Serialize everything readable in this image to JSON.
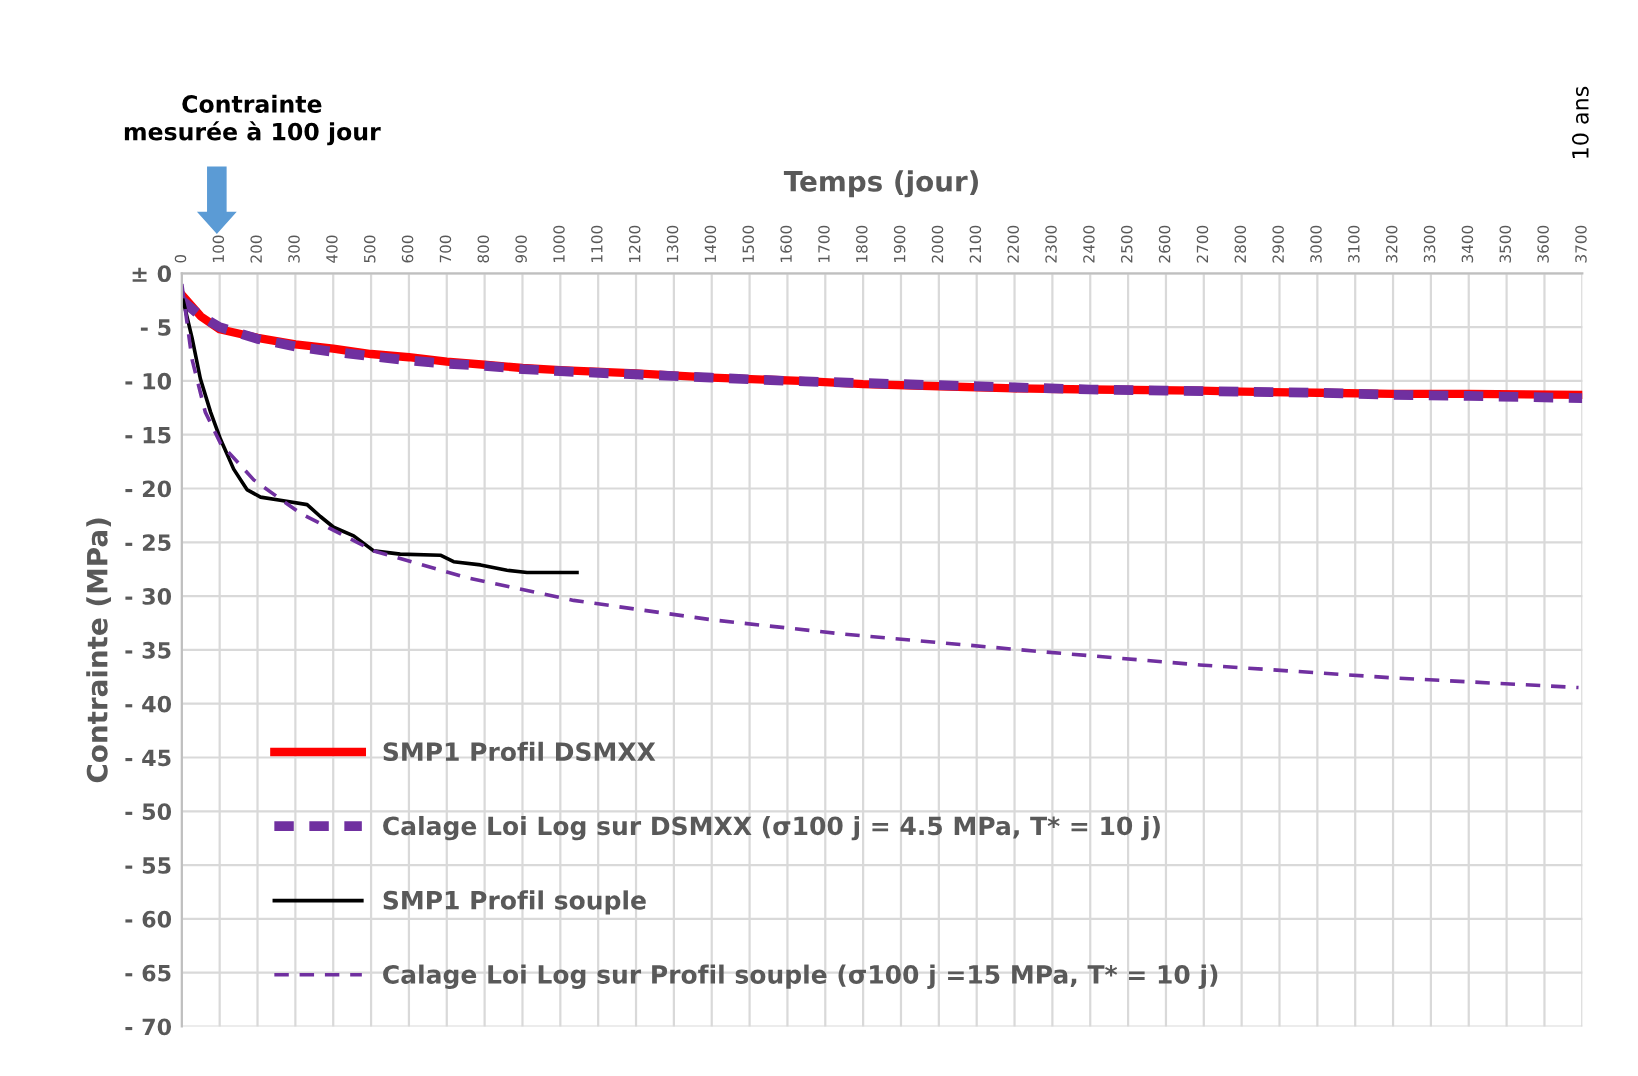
{
  "chart_data": {
    "type": "line",
    "xlabel": "Temps (jour)",
    "ylabel": "Contrainte (MPa)",
    "xlim": [
      0,
      3700
    ],
    "xticks": [
      0,
      100,
      200,
      300,
      400,
      500,
      600,
      700,
      800,
      900,
      1000,
      1100,
      1200,
      1300,
      1400,
      1500,
      1600,
      1700,
      1800,
      1900,
      2000,
      2100,
      2200,
      2300,
      2400,
      2500,
      2600,
      2700,
      2800,
      2900,
      3000,
      3100,
      3200,
      3300,
      3400,
      3500,
      3600,
      3700
    ],
    "ylim": [
      -70,
      0
    ],
    "yticks": [
      {
        "value": 0,
        "label": "± 0"
      },
      {
        "value": -5,
        "label": "- 5"
      },
      {
        "value": -10,
        "label": "- 10"
      },
      {
        "value": -15,
        "label": "- 15"
      },
      {
        "value": -20,
        "label": "- 20"
      },
      {
        "value": -25,
        "label": "- 25"
      },
      {
        "value": -30,
        "label": "- 30"
      },
      {
        "value": -35,
        "label": "- 35"
      },
      {
        "value": -40,
        "label": "- 40"
      },
      {
        "value": -45,
        "label": "- 45"
      },
      {
        "value": -50,
        "label": "- 50"
      },
      {
        "value": -55,
        "label": "- 55"
      },
      {
        "value": -60,
        "label": "- 60"
      },
      {
        "value": -65,
        "label": "- 65"
      },
      {
        "value": -70,
        "label": "- 70"
      }
    ],
    "grid": true,
    "legend": "bottom left",
    "marker": "none",
    "annotations": [
      "Contrainte\nmesurée à 100 jour",
      "10 ans"
    ],
    "series": [
      {
        "name": "SMP1 Profil DSMXX",
        "color": "#ff0000",
        "line_style": "solid",
        "x": [
          0,
          50,
          100,
          200,
          300,
          400,
          500,
          600,
          700,
          800,
          900,
          1000,
          1200,
          1400,
          1634,
          1800,
          2000,
          2200,
          2400,
          2690,
          2800,
          3000,
          3200,
          3400,
          3695
        ],
        "values": [
          -2,
          -4,
          -5.2,
          -6.0,
          -6.6,
          -7.0,
          -7.5,
          -7.8,
          -8.2,
          -8.5,
          -8.8,
          -9.0,
          -9.3,
          -9.7,
          -10.0,
          -10.3,
          -10.5,
          -10.7,
          -10.8,
          -10.9,
          -11.0,
          -11.1,
          -11.2,
          -11.2,
          -11.3
        ]
      },
      {
        "name": "Calage Loi Log sur DSMXX (σ100 j = 4.5 MPa, T* = 10 j)",
        "color": "#7030a0",
        "line_style": "dashed",
        "x": [
          0,
          50,
          100,
          200,
          300,
          400,
          500,
          600,
          700,
          800,
          900,
          1000,
          1200,
          1400,
          1600,
          1800,
          2000,
          2200,
          2400,
          2600,
          2800,
          3000,
          3200,
          3400,
          3700
        ],
        "values": [
          -2.5,
          -4,
          -5.0,
          -6.1,
          -6.8,
          -7.3,
          -7.7,
          -8.1,
          -8.4,
          -8.6,
          -8.9,
          -9.1,
          -9.4,
          -9.7,
          -10.0,
          -10.2,
          -10.4,
          -10.6,
          -10.8,
          -10.9,
          -11.0,
          -11.1,
          -11.3,
          -11.4,
          -11.6
        ]
      },
      {
        "name": "SMP1 Profil souple",
        "color": "#000000",
        "line_style": "solid",
        "x": [
          2,
          27,
          49,
          76,
          102,
          137,
          172,
          208,
          260,
          331,
          366,
          401,
          454,
          507,
          577,
          683,
          718,
          789,
          859,
          912,
          965,
          1044
        ],
        "values": [
          -2.3,
          -6,
          -9.8,
          -12.9,
          -15.4,
          -18.2,
          -20.1,
          -20.8,
          -21.1,
          -21.5,
          -22.6,
          -23.6,
          -24.4,
          -25.8,
          -26.1,
          -26.2,
          -26.8,
          -27.1,
          -27.6,
          -27.8,
          -27.8,
          -27.8
        ]
      },
      {
        "name": "Calage Loi Log sur Profil souple (σ100 j =15 MPa, T* = 10 j)",
        "color": "#7030a0",
        "line_style": "dashed",
        "x": [
          0,
          27,
          62,
          102,
          190,
          313,
          507,
          754,
          1035,
          1400,
          1740,
          2250,
          2690,
          3200,
          3690
        ],
        "values": [
          -1,
          -8,
          -12.9,
          -15.8,
          -19.2,
          -22.3,
          -25.8,
          -28.3,
          -30.4,
          -32.2,
          -33.5,
          -35.1,
          -36.4,
          -37.6,
          -38.5
        ]
      }
    ]
  }
}
